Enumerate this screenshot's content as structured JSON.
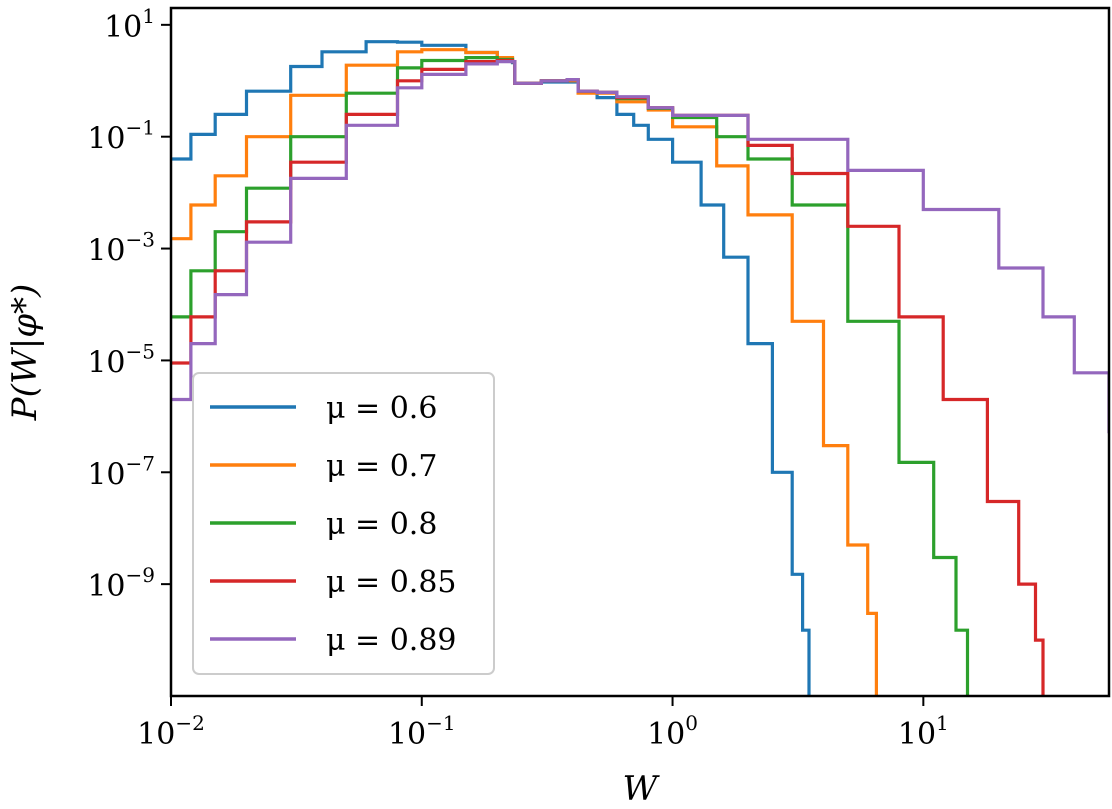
{
  "chart_data": {
    "type": "line",
    "title": "",
    "xlabel": "W",
    "ylabel": "P(W|φ*)",
    "xscale": "log",
    "yscale": "log",
    "xlim": [
      0.01,
      55
    ],
    "ylim": [
      1e-11,
      20
    ],
    "x_ticks": [
      {
        "value": 0.01,
        "base": "10",
        "exp": "−2"
      },
      {
        "value": 0.1,
        "base": "10",
        "exp": "−1"
      },
      {
        "value": 1,
        "base": "10",
        "exp": "0"
      },
      {
        "value": 10,
        "base": "10",
        "exp": "1"
      }
    ],
    "y_ticks": [
      {
        "value": 10,
        "base": "10",
        "exp": "1"
      },
      {
        "value": 0.1,
        "base": "10",
        "exp": "−1"
      },
      {
        "value": 0.001,
        "base": "10",
        "exp": "−3"
      },
      {
        "value": 1e-05,
        "base": "10",
        "exp": "−5"
      },
      {
        "value": 1e-07,
        "base": "10",
        "exp": "−7"
      },
      {
        "value": 1e-09,
        "base": "10",
        "exp": "−9"
      }
    ],
    "grid": false,
    "legend_position": "lower-left",
    "series": [
      {
        "name": "μ = 0.6",
        "color": "#1f77b4",
        "points": [
          [
            0.01,
            0.04
          ],
          [
            0.012,
            0.11
          ],
          [
            0.015,
            0.25
          ],
          [
            0.02,
            0.65
          ],
          [
            0.03,
            1.8
          ],
          [
            0.04,
            3.3
          ],
          [
            0.06,
            5.0
          ],
          [
            0.08,
            4.9
          ],
          [
            0.1,
            4.3
          ],
          [
            0.15,
            3.2
          ],
          [
            0.2,
            2.5
          ],
          [
            0.23,
            2.1
          ],
          [
            0.235,
            0.9
          ],
          [
            0.3,
            0.95
          ],
          [
            0.38,
            0.95
          ],
          [
            0.42,
            0.62
          ],
          [
            0.5,
            0.5
          ],
          [
            0.6,
            0.25
          ],
          [
            0.7,
            0.16
          ],
          [
            0.8,
            0.09
          ],
          [
            1.0,
            0.035
          ],
          [
            1.3,
            0.006
          ],
          [
            1.6,
            0.0007
          ],
          [
            2.0,
            2e-05
          ],
          [
            2.5,
            1e-07
          ],
          [
            3.0,
            1.5e-09
          ],
          [
            3.3,
            1.5e-10
          ],
          [
            3.5,
            1e-11
          ]
        ]
      },
      {
        "name": "μ = 0.7",
        "color": "#ff7f0e",
        "points": [
          [
            0.01,
            0.0015
          ],
          [
            0.012,
            0.006
          ],
          [
            0.015,
            0.02
          ],
          [
            0.02,
            0.1
          ],
          [
            0.03,
            0.55
          ],
          [
            0.05,
            1.9
          ],
          [
            0.08,
            3.3
          ],
          [
            0.1,
            3.6
          ],
          [
            0.15,
            3.2
          ],
          [
            0.2,
            2.6
          ],
          [
            0.23,
            2.2
          ],
          [
            0.235,
            0.9
          ],
          [
            0.3,
            1.0
          ],
          [
            0.38,
            1.0
          ],
          [
            0.42,
            0.6
          ],
          [
            0.5,
            0.6
          ],
          [
            0.6,
            0.42
          ],
          [
            0.8,
            0.3
          ],
          [
            1.0,
            0.15
          ],
          [
            1.5,
            0.03
          ],
          [
            2.0,
            0.004
          ],
          [
            3.0,
            5e-05
          ],
          [
            4.0,
            3e-07
          ],
          [
            5.0,
            5e-09
          ],
          [
            6.0,
            3e-10
          ],
          [
            6.5,
            1e-11
          ]
        ]
      },
      {
        "name": "μ = 0.8",
        "color": "#2ca02c",
        "points": [
          [
            0.01,
            6e-05
          ],
          [
            0.012,
            0.0004
          ],
          [
            0.015,
            0.002
          ],
          [
            0.02,
            0.012
          ],
          [
            0.03,
            0.1
          ],
          [
            0.05,
            0.6
          ],
          [
            0.08,
            1.7
          ],
          [
            0.1,
            2.3
          ],
          [
            0.15,
            2.6
          ],
          [
            0.2,
            2.4
          ],
          [
            0.23,
            2.2
          ],
          [
            0.235,
            0.9
          ],
          [
            0.3,
            1.0
          ],
          [
            0.38,
            1.05
          ],
          [
            0.42,
            0.65
          ],
          [
            0.5,
            0.62
          ],
          [
            0.6,
            0.48
          ],
          [
            0.8,
            0.32
          ],
          [
            1.0,
            0.22
          ],
          [
            1.5,
            0.1
          ],
          [
            2.0,
            0.04
          ],
          [
            3.0,
            0.006
          ],
          [
            5.0,
            5e-05
          ],
          [
            8.0,
            1.5e-07
          ],
          [
            11.0,
            3e-09
          ],
          [
            13.5,
            1.5e-10
          ],
          [
            15.0,
            1e-11
          ]
        ]
      },
      {
        "name": "μ = 0.85",
        "color": "#d62728",
        "points": [
          [
            0.01,
            9e-06
          ],
          [
            0.012,
            6e-05
          ],
          [
            0.015,
            0.0004
          ],
          [
            0.02,
            0.003
          ],
          [
            0.03,
            0.035
          ],
          [
            0.05,
            0.25
          ],
          [
            0.08,
            1.0
          ],
          [
            0.1,
            1.6
          ],
          [
            0.15,
            2.2
          ],
          [
            0.2,
            2.3
          ],
          [
            0.23,
            2.2
          ],
          [
            0.235,
            0.9
          ],
          [
            0.3,
            1.0
          ],
          [
            0.38,
            1.05
          ],
          [
            0.42,
            0.65
          ],
          [
            0.5,
            0.62
          ],
          [
            0.6,
            0.5
          ],
          [
            0.8,
            0.33
          ],
          [
            1.0,
            0.24
          ],
          [
            2.0,
            0.07
          ],
          [
            3.0,
            0.022
          ],
          [
            5.0,
            0.0025
          ],
          [
            8.0,
            6e-05
          ],
          [
            12.0,
            2e-06
          ],
          [
            18.0,
            3e-08
          ],
          [
            24.0,
            1e-09
          ],
          [
            28.0,
            1e-10
          ],
          [
            30.0,
            1e-11
          ]
        ]
      },
      {
        "name": "μ = 0.89",
        "color": "#9467bd",
        "points": [
          [
            0.01,
            2e-06
          ],
          [
            0.012,
            2e-05
          ],
          [
            0.015,
            0.00015
          ],
          [
            0.02,
            0.0013
          ],
          [
            0.03,
            0.018
          ],
          [
            0.05,
            0.16
          ],
          [
            0.08,
            0.75
          ],
          [
            0.1,
            1.3
          ],
          [
            0.15,
            2.0
          ],
          [
            0.2,
            2.2
          ],
          [
            0.23,
            2.2
          ],
          [
            0.235,
            0.9
          ],
          [
            0.3,
            1.0
          ],
          [
            0.38,
            1.05
          ],
          [
            0.42,
            0.65
          ],
          [
            0.5,
            0.62
          ],
          [
            0.6,
            0.52
          ],
          [
            0.8,
            0.33
          ],
          [
            1.0,
            0.24
          ],
          [
            2.0,
            0.09
          ],
          [
            5.0,
            0.025
          ],
          [
            10.0,
            0.005
          ],
          [
            20.0,
            0.00045
          ],
          [
            30.0,
            6e-05
          ],
          [
            40.0,
            6e-06
          ],
          [
            55.0,
            5e-07
          ]
        ]
      }
    ]
  }
}
